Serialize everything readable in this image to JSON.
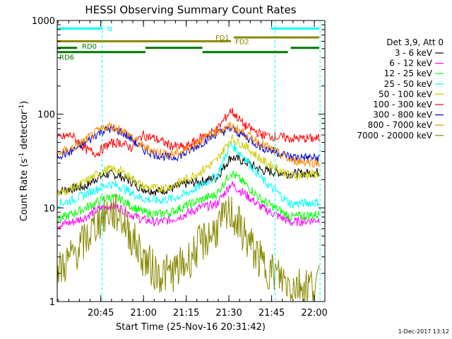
{
  "chart_data": {
    "type": "line",
    "title": "HESSI Observing Summary Count Rates",
    "xlabel": "Start Time (25-Nov-16 20:31:42)",
    "ylabel_main": "Count Rate (s",
    "ylabel_sup1": "-1",
    "ylabel_mid": " detector",
    "ylabel_sup2": "-1",
    "ylabel_end": ")",
    "x_range_minutes": [
      0,
      94
    ],
    "ylim": [
      1,
      1000
    ],
    "y_scale": "log",
    "x_ticks": [
      {
        "minute": 15.3,
        "label": "20:45"
      },
      {
        "minute": 30.3,
        "label": "21:00"
      },
      {
        "minute": 45.3,
        "label": "21:15"
      },
      {
        "minute": 60.3,
        "label": "21:30"
      },
      {
        "minute": 75.3,
        "label": "21:45"
      },
      {
        "minute": 90.3,
        "label": "22:00"
      }
    ],
    "y_ticks": [
      {
        "value": 1,
        "label": "1"
      },
      {
        "value": 10,
        "label": "10"
      },
      {
        "value": 100,
        "label": "100"
      },
      {
        "value": 1000,
        "label": "1000"
      }
    ],
    "legend_title": "Det 3,9, Att 0",
    "legend_placement": "right",
    "series": [
      {
        "name": "3 - 6 keV",
        "color": "#000000",
        "values": [
          15,
          16,
          17,
          21,
          23,
          22,
          19,
          16,
          15,
          16,
          18,
          19,
          21,
          35,
          31,
          25,
          23,
          24
        ]
      },
      {
        "name": "6 - 12 keV",
        "color": "#ff00ff",
        "values": [
          6.5,
          7,
          8,
          9.5,
          10.5,
          10,
          8.5,
          7.5,
          7,
          7.5,
          8.5,
          10,
          11,
          18,
          14,
          10,
          7,
          7.5
        ]
      },
      {
        "name": "12 - 25 keV",
        "color": "#00ff00",
        "values": [
          7.5,
          8.5,
          10,
          11.5,
          13,
          12.5,
          10.5,
          9,
          8.5,
          9,
          10.5,
          12,
          14,
          24,
          18,
          12,
          8,
          8.5
        ]
      },
      {
        "name": "25 - 50 keV",
        "color": "#00ffff",
        "values": [
          11,
          12,
          14,
          16,
          18,
          17,
          14.5,
          12.5,
          12,
          12.5,
          14,
          17,
          22,
          48,
          34,
          20,
          11,
          11.5
        ]
      },
      {
        "name": "50 - 100 keV",
        "color": "#cccc00",
        "values": [
          14,
          16,
          19,
          23,
          26,
          25,
          21,
          17,
          16,
          17,
          20,
          24,
          32,
          55,
          46,
          32,
          22,
          23
        ]
      },
      {
        "name": "100 - 300 keV",
        "color": "#ff0000",
        "values": [
          55,
          60,
          42,
          38,
          48,
          50,
          44,
          60,
          54,
          46,
          44,
          55,
          68,
          110,
          75,
          60,
          55,
          55
        ]
      },
      {
        "name": "300 - 800 keV",
        "color": "#0000cc",
        "values": [
          36,
          40,
          50,
          62,
          70,
          66,
          55,
          42,
          37,
          34,
          38,
          48,
          62,
          70,
          58,
          44,
          35,
          34
        ]
      },
      {
        "name": "800 - 7000 keV",
        "color": "#ff8800",
        "values": [
          38,
          43,
          53,
          65,
          75,
          70,
          58,
          45,
          40,
          37,
          41,
          52,
          66,
          75,
          62,
          48,
          32,
          30
        ]
      },
      {
        "name": "7000 - 20000 keV",
        "color": "#888800",
        "values": [
          2,
          3,
          4.5,
          7,
          9,
          8.5,
          5,
          3,
          2,
          2,
          2.5,
          4,
          6,
          9,
          5,
          2.5,
          1.5,
          1.5
        ]
      }
    ],
    "series_x_minutes": [
      0,
      5,
      10,
      14,
      18,
      22,
      26,
      30,
      35,
      40,
      45,
      50,
      56,
      61,
      66,
      72,
      82,
      92
    ],
    "flag_lines": [
      {
        "label": "N",
        "color": "#00ffff",
        "y_value": 820,
        "segments": [
          [
            0,
            16
          ],
          [
            75,
            92
          ]
        ]
      },
      {
        "label": "FD1",
        "color": "#888800",
        "y_value": 660,
        "segments": [
          [
            62,
            92
          ]
        ]
      },
      {
        "label": "FD2",
        "color": "#888800",
        "y_value": 600,
        "segments": [
          [
            0,
            61
          ]
        ]
      },
      {
        "label": "RD0",
        "color": "#007700",
        "y_value": 510,
        "segments": [
          [
            0,
            7
          ],
          [
            31,
            51
          ],
          [
            82,
            92
          ]
        ]
      },
      {
        "label": "RD6",
        "color": "#007700",
        "y_value": 460,
        "segments": [
          [
            0,
            31
          ],
          [
            51,
            81
          ]
        ]
      }
    ],
    "vertical_markers_minutes": [
      15.8,
      76.5,
      92.3
    ],
    "footer_date": "1-Dec-2017 13:12"
  }
}
